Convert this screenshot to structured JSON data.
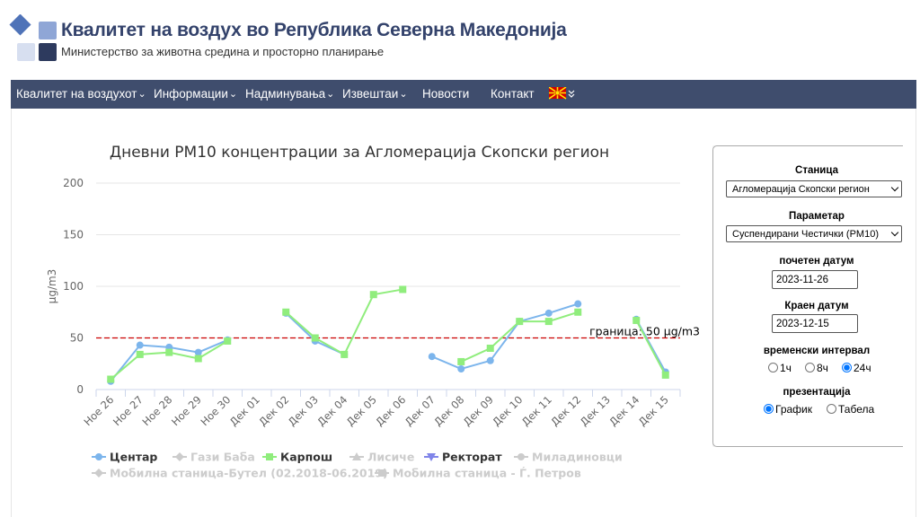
{
  "header": {
    "title": "Квалитет на воздух во Република Северна Македонија",
    "subtitle": "Министерство за животна средина и просторно планирање"
  },
  "nav": [
    {
      "label": "Квалитет на воздухот",
      "dropdown": true
    },
    {
      "label": "Информации",
      "dropdown": true
    },
    {
      "label": "Надминувања",
      "dropdown": true
    },
    {
      "label": "Извештаи",
      "dropdown": true
    },
    {
      "label": "Новости",
      "dropdown": false
    },
    {
      "label": "Контакт",
      "dropdown": false
    }
  ],
  "chart_data": {
    "type": "line",
    "title": "Дневни PM10 концентрации за Агломерација Скопски регион",
    "y_label": "μg/m3",
    "categories": [
      "Ное 26",
      "Ное 27",
      "Ное 28",
      "Ное 29",
      "Ное 30",
      "Дек 01",
      "Дек 02",
      "Дек 03",
      "Дек 04",
      "Дек 05",
      "Дек 06",
      "Дек 07",
      "Дек 08",
      "Дек 09",
      "Дек 10",
      "Дек 11",
      "Дек 12",
      "Дек 13",
      "Дек 14",
      "Дек 15"
    ],
    "ylim": [
      0,
      200
    ],
    "yticks": [
      0,
      50,
      100,
      150,
      200
    ],
    "grid": true,
    "threshold": {
      "value": 50,
      "label": "граница: 50 μg/m3",
      "color": "#cc0000"
    },
    "series": [
      {
        "name": "Центар",
        "color": "#7cb5ec",
        "marker": "circle",
        "visible": true,
        "values": [
          8,
          43,
          41,
          36,
          48,
          null,
          74,
          47,
          34,
          null,
          null,
          32,
          20,
          28,
          66,
          74,
          83,
          null,
          68,
          17
        ]
      },
      {
        "name": "Гази Баба",
        "color": "#cccccc",
        "marker": "diamond",
        "visible": false,
        "values": null
      },
      {
        "name": "Карпош",
        "color": "#90ed7d",
        "marker": "square",
        "visible": true,
        "values": [
          10,
          34,
          36,
          30,
          47,
          null,
          75,
          50,
          34,
          92,
          97,
          null,
          27,
          40,
          66,
          66,
          75,
          null,
          67,
          14
        ]
      },
      {
        "name": "Лисиче",
        "color": "#cccccc",
        "marker": "triangle",
        "visible": false,
        "values": null
      },
      {
        "name": "Ректорат",
        "color": "#8085e9",
        "marker": "triangle-down",
        "visible": true,
        "values": null
      },
      {
        "name": "Миладиновци",
        "color": "#cccccc",
        "marker": "circle",
        "visible": false,
        "values": null
      },
      {
        "name": "Мобилна станица-Бутел (02.2018-06.2019)",
        "color": "#cccccc",
        "marker": "diamond",
        "visible": false,
        "values": null
      },
      {
        "name": "Мобилна станица - Ѓ. Петров",
        "color": "#cccccc",
        "marker": "square",
        "visible": false,
        "values": null
      }
    ]
  },
  "panel": {
    "station": {
      "label": "Станица",
      "value": "Агломерација Скопски регион"
    },
    "parameter": {
      "label": "Параметар",
      "value": "Суспендирани Честички (PM10)"
    },
    "start_date": {
      "label": "почетен датум",
      "value": "2023-11-26"
    },
    "end_date": {
      "label": "Краен датум",
      "value": "2023-12-15"
    },
    "interval": {
      "label": "временски интервал",
      "options": [
        {
          "label": "1ч",
          "checked": false
        },
        {
          "label": "8ч",
          "checked": false
        },
        {
          "label": "24ч",
          "checked": true
        }
      ]
    },
    "presentation": {
      "label": "презентација",
      "options": [
        {
          "label": "График",
          "checked": true
        },
        {
          "label": "Табела",
          "checked": false
        }
      ]
    }
  }
}
